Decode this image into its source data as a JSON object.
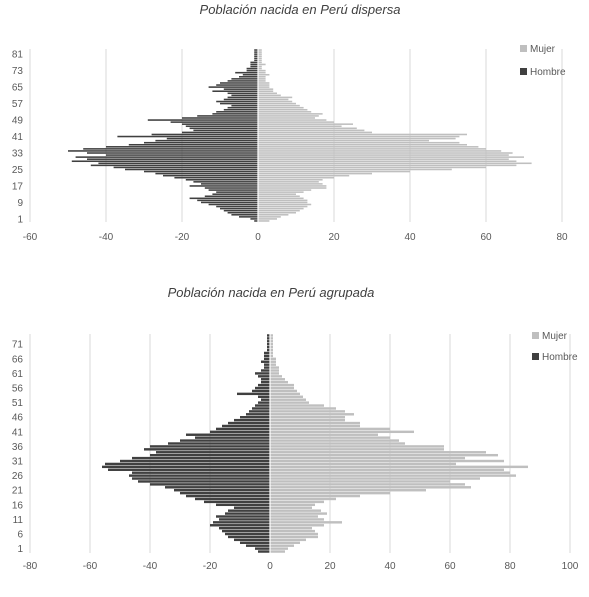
{
  "chart_data": [
    {
      "type": "bar",
      "orientation": "horizontal",
      "title": "Población nacida en Perú dispersa",
      "xlim": [
        -60,
        80
      ],
      "xticks": [
        -60,
        -40,
        -20,
        0,
        20,
        40,
        60,
        80
      ],
      "ytick_labels": [
        "1",
        "9",
        "17",
        "25",
        "33",
        "41",
        "49",
        "57",
        "65",
        "73",
        "81"
      ],
      "ytick_ages": [
        1,
        9,
        17,
        25,
        33,
        41,
        49,
        57,
        65,
        73,
        81
      ],
      "age_min": 0,
      "age_max": 83,
      "grid": true,
      "legend_position": "right",
      "colors": {
        "mujer": "#bfbfbf",
        "hombre": "#404040"
      },
      "series": [
        {
          "name": "Mujer",
          "ages": [
            0,
            1,
            2,
            3,
            4,
            5,
            6,
            7,
            8,
            9,
            10,
            11,
            12,
            13,
            14,
            15,
            16,
            17,
            18,
            19,
            20,
            21,
            22,
            23,
            24,
            25,
            26,
            27,
            28,
            29,
            30,
            31,
            32,
            33,
            34,
            35,
            36,
            37,
            38,
            39,
            40,
            41,
            42,
            43,
            44,
            45,
            46,
            47,
            48,
            49,
            50,
            51,
            52,
            53,
            54,
            55,
            56,
            57,
            58,
            59,
            60,
            61,
            62,
            63,
            64,
            65,
            66,
            67,
            68,
            69,
            70,
            71,
            72,
            73,
            74,
            75,
            76,
            77,
            78,
            79,
            80,
            81,
            82,
            83
          ],
          "values": [
            3,
            5,
            6,
            8,
            10,
            11,
            12,
            13,
            14,
            13,
            13,
            12,
            11,
            10,
            12,
            14,
            18,
            18,
            17,
            16,
            17,
            20,
            24,
            30,
            40,
            51,
            60,
            68,
            72,
            68,
            66,
            70,
            66,
            67,
            64,
            60,
            58,
            55,
            53,
            45,
            52,
            53,
            55,
            30,
            28,
            26,
            22,
            25,
            20,
            18,
            15,
            16,
            17,
            14,
            13,
            12,
            11,
            10,
            9,
            8,
            9,
            6,
            5,
            4,
            4,
            3,
            3,
            3,
            2,
            2,
            2,
            3,
            2,
            2,
            1,
            1,
            2,
            1,
            1,
            1,
            1,
            1,
            1,
            1
          ]
        },
        {
          "name": "Hombre",
          "ages": [
            0,
            1,
            2,
            3,
            4,
            5,
            6,
            7,
            8,
            9,
            10,
            11,
            12,
            13,
            14,
            15,
            16,
            17,
            18,
            19,
            20,
            21,
            22,
            23,
            24,
            25,
            26,
            27,
            28,
            29,
            30,
            31,
            32,
            33,
            34,
            35,
            36,
            37,
            38,
            39,
            40,
            41,
            42,
            43,
            44,
            45,
            46,
            47,
            48,
            49,
            50,
            51,
            52,
            53,
            54,
            55,
            56,
            57,
            58,
            59,
            60,
            61,
            62,
            63,
            64,
            65,
            66,
            67,
            68,
            69,
            70,
            71,
            72,
            73,
            74,
            75,
            76,
            77,
            78,
            79,
            80,
            81,
            82,
            83
          ],
          "values": [
            -1,
            -2,
            -5,
            -7,
            -8,
            -9,
            -10,
            -11,
            -13,
            -15,
            -16,
            -18,
            -14,
            -12,
            -11,
            -13,
            -14,
            -18,
            -15,
            -17,
            -19,
            -22,
            -25,
            -27,
            -30,
            -35,
            -38,
            -44,
            -42,
            -49,
            -45,
            -48,
            -40,
            -45,
            -50,
            -46,
            -40,
            -34,
            -30,
            -27,
            -24,
            -37,
            -28,
            -20,
            -17,
            -18,
            -19,
            -20,
            -23,
            -29,
            -20,
            -16,
            -12,
            -11,
            -9,
            -8,
            -7,
            -10,
            -11,
            -9,
            -8,
            -7,
            -8,
            -12,
            -9,
            -13,
            -11,
            -10,
            -8,
            -7,
            -5,
            -4,
            -6,
            -3,
            -3,
            -2,
            -2,
            -2,
            -1,
            -1,
            -1,
            -1,
            -1,
            -1
          ]
        }
      ]
    },
    {
      "type": "bar",
      "orientation": "horizontal",
      "title": "Población nacida en Perú agrupada",
      "xlim": [
        -80,
        100
      ],
      "xticks": [
        -80,
        -60,
        -40,
        -20,
        0,
        20,
        40,
        60,
        80,
        100
      ],
      "ytick_labels": [
        "1",
        "6",
        "11",
        "16",
        "21",
        "26",
        "31",
        "36",
        "41",
        "46",
        "51",
        "56",
        "61",
        "66",
        "71"
      ],
      "ytick_ages": [
        1,
        6,
        11,
        16,
        21,
        26,
        31,
        36,
        41,
        46,
        51,
        56,
        61,
        66,
        71
      ],
      "age_min": 0,
      "age_max": 74,
      "grid": true,
      "legend_position": "right",
      "colors": {
        "mujer": "#bfbfbf",
        "hombre": "#404040"
      },
      "series": [
        {
          "name": "Mujer",
          "ages": [
            0,
            1,
            2,
            3,
            4,
            5,
            6,
            7,
            8,
            9,
            10,
            11,
            12,
            13,
            14,
            15,
            16,
            17,
            18,
            19,
            20,
            21,
            22,
            23,
            24,
            25,
            26,
            27,
            28,
            29,
            30,
            31,
            32,
            33,
            34,
            35,
            36,
            37,
            38,
            39,
            40,
            41,
            42,
            43,
            44,
            45,
            46,
            47,
            48,
            49,
            50,
            51,
            52,
            53,
            54,
            55,
            56,
            57,
            58,
            59,
            60,
            61,
            62,
            63,
            64,
            65,
            66,
            67,
            68,
            69,
            70,
            71,
            72,
            73,
            74
          ],
          "values": [
            5,
            6,
            8,
            10,
            12,
            16,
            16,
            15,
            14,
            18,
            24,
            18,
            16,
            19,
            17,
            14,
            15,
            18,
            22,
            30,
            40,
            52,
            67,
            65,
            60,
            70,
            82,
            80,
            78,
            86,
            62,
            78,
            65,
            76,
            72,
            58,
            58,
            45,
            43,
            40,
            36,
            48,
            40,
            30,
            30,
            25,
            25,
            28,
            25,
            22,
            18,
            13,
            12,
            11,
            10,
            9,
            8,
            8,
            6,
            5,
            4,
            3,
            3,
            3,
            2,
            2,
            2,
            1,
            1,
            1,
            1,
            1,
            1,
            1,
            1
          ]
        },
        {
          "name": "Hombre",
          "ages": [
            0,
            1,
            2,
            3,
            4,
            5,
            6,
            7,
            8,
            9,
            10,
            11,
            12,
            13,
            14,
            15,
            16,
            17,
            18,
            19,
            20,
            21,
            22,
            23,
            24,
            25,
            26,
            27,
            28,
            29,
            30,
            31,
            32,
            33,
            34,
            35,
            36,
            37,
            38,
            39,
            40,
            41,
            42,
            43,
            44,
            45,
            46,
            47,
            48,
            49,
            50,
            51,
            52,
            53,
            54,
            55,
            56,
            57,
            58,
            59,
            60,
            61,
            62,
            63,
            64,
            65,
            66,
            67,
            68,
            69,
            70,
            71,
            72,
            73,
            74
          ],
          "values": [
            -4,
            -5,
            -8,
            -10,
            -12,
            -14,
            -15,
            -16,
            -17,
            -20,
            -19,
            -17,
            -18,
            -15,
            -14,
            -12,
            -18,
            -22,
            -25,
            -28,
            -30,
            -32,
            -35,
            -40,
            -44,
            -46,
            -47,
            -46,
            -54,
            -56,
            -55,
            -50,
            -46,
            -40,
            -38,
            -42,
            -40,
            -34,
            -30,
            -25,
            -28,
            -20,
            -18,
            -16,
            -14,
            -12,
            -10,
            -8,
            -7,
            -6,
            -5,
            -4,
            -3,
            -4,
            -11,
            -6,
            -5,
            -4,
            -3,
            -3,
            -4,
            -5,
            -3,
            -2,
            -2,
            -3,
            -2,
            -2,
            -2,
            -1,
            -1,
            -1,
            -1,
            -1,
            -1
          ]
        }
      ]
    }
  ]
}
